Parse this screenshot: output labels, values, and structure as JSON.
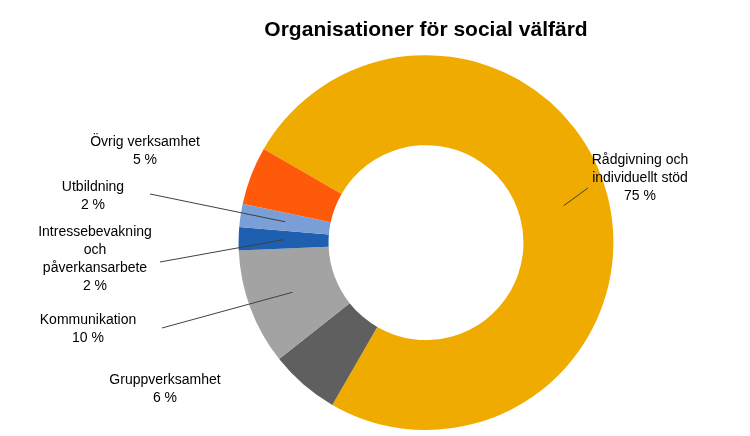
{
  "chart_data": {
    "type": "doughnut",
    "title": "Organisationer för social välfärd",
    "categories": [
      "Rådgivning och individuellt stöd",
      "Gruppverksamhet",
      "Kommunikation",
      "Intressebevakning och påverkansarbete",
      "Utbildning",
      "Övrig verksamhet"
    ],
    "values": [
      75,
      6,
      10,
      2,
      2,
      5
    ],
    "value_labels": [
      "75 %",
      "6 %",
      "10 %",
      "2 %",
      "2 %",
      "5 %"
    ],
    "colors": [
      "#f0ab00",
      "#5f5f5f",
      "#a3a3a3",
      "#1f5fb0",
      "#7a9fd6",
      "#ff5a0a"
    ],
    "data_labels": true
  }
}
